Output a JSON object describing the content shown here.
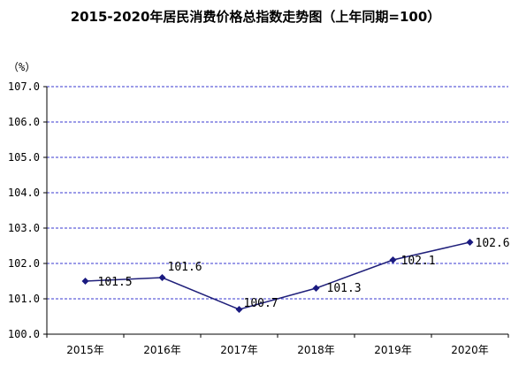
{
  "chart_data": {
    "type": "line",
    "title": "2015-2020年居民消费价格总指数走势图（上年同期=100）",
    "ylabel": "（%）",
    "xlabel": "",
    "categories": [
      "2015年",
      "2016年",
      "2017年",
      "2018年",
      "2019年",
      "2020年"
    ],
    "series": [
      {
        "values": [
          101.5,
          101.6,
          100.7,
          101.3,
          102.1,
          102.6
        ]
      }
    ],
    "data_labels": [
      "101.5",
      "101.6",
      "100.7",
      "101.3",
      "102.1",
      "102.6"
    ],
    "ylim": [
      100.0,
      107.0
    ],
    "yticks": [
      "100.0",
      "101.0",
      "102.0",
      "103.0",
      "104.0",
      "105.0",
      "106.0",
      "107.0"
    ],
    "grid": true,
    "colors": {
      "line": "#1f1f7a",
      "marker": "#1a1a80",
      "grid": "#3a3ad0",
      "axis": "#000000"
    }
  }
}
